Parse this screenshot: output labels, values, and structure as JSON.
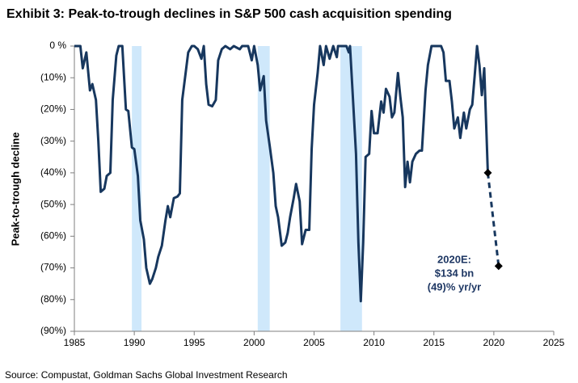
{
  "chart_data": {
    "type": "line",
    "title": "Exhibit 3: Peak-to-trough declines in S&P 500 cash acquisition spending",
    "ylabel": "Peak-to-trough  decline",
    "source": "Source: Compustat, Goldman Sachs Global Investment Research",
    "annotation": [
      "2020E:",
      "$134 bn",
      "(49)% yr/yr"
    ],
    "xlim": [
      1985,
      2025
    ],
    "xticks": [
      1985,
      1990,
      1995,
      2000,
      2005,
      2010,
      2015,
      2020,
      2025
    ],
    "ylim": [
      -90,
      0
    ],
    "yticks": [
      {
        "value": 0,
        "label": "0 %"
      },
      {
        "value": -10,
        "label": "(10%)"
      },
      {
        "value": -20,
        "label": "(20%)"
      },
      {
        "value": -30,
        "label": "(30%)"
      },
      {
        "value": -40,
        "label": "(40%)"
      },
      {
        "value": -50,
        "label": "(50%)"
      },
      {
        "value": -60,
        "label": "(60%)"
      },
      {
        "value": -70,
        "label": "(70%)"
      },
      {
        "value": -80,
        "label": "(80%)"
      },
      {
        "value": -90,
        "label": "(90%)"
      }
    ],
    "shaded_ranges": [
      [
        1989.8,
        1990.6
      ],
      [
        2000.3,
        2001.3
      ],
      [
        2007.2,
        2009.0
      ]
    ],
    "shade_color": "#cfe8fb",
    "series": [
      {
        "color": "#17375e",
        "x": [
          1985.0,
          1985.5,
          1985.7,
          1986.0,
          1986.3,
          1986.5,
          1986.8,
          1987.0,
          1987.2,
          1987.5,
          1987.7,
          1988.0,
          1988.2,
          1988.5,
          1988.7,
          1989.0,
          1989.3,
          1989.5,
          1989.8,
          1990.0,
          1990.3,
          1990.5,
          1990.8,
          1991.0,
          1991.3,
          1991.5,
          1991.8,
          1992.0,
          1992.3,
          1992.6,
          1992.8,
          1993.0,
          1993.3,
          1993.6,
          1993.8,
          1994.0,
          1994.3,
          1994.5,
          1994.8,
          1995.0,
          1995.3,
          1995.6,
          1995.8,
          1996.0,
          1996.2,
          1996.5,
          1996.8,
          1997.0,
          1997.3,
          1997.6,
          1998.0,
          1998.3,
          1998.8,
          1999.0,
          1999.5,
          1999.8,
          2000.0,
          2000.3,
          2000.5,
          2000.8,
          2001.0,
          2001.3,
          2001.6,
          2001.8,
          2002.0,
          2002.3,
          2002.6,
          2002.8,
          2003.0,
          2003.3,
          2003.5,
          2003.8,
          2004.0,
          2004.3,
          2004.6,
          2004.8,
          2005.0,
          2005.3,
          2005.5,
          2005.8,
          2006.0,
          2006.3,
          2006.6,
          2006.9,
          2007.0,
          2007.5,
          2007.7,
          2007.9,
          2008.0,
          2008.2,
          2008.5,
          2008.7,
          2008.9,
          2009.1,
          2009.3,
          2009.6,
          2009.8,
          2010.0,
          2010.3,
          2010.6,
          2010.8,
          2011.0,
          2011.3,
          2011.5,
          2011.7,
          2012.0,
          2012.2,
          2012.4,
          2012.6,
          2012.8,
          2013.0,
          2013.2,
          2013.5,
          2013.8,
          2014.0,
          2014.3,
          2014.5,
          2014.8,
          2015.0,
          2015.3,
          2015.6,
          2015.8,
          2016.0,
          2016.3,
          2016.5,
          2016.7,
          2017.0,
          2017.2,
          2017.5,
          2017.7,
          2018.0,
          2018.2,
          2018.4,
          2018.6,
          2018.8,
          2019.0,
          2019.2,
          2019.5
        ],
        "values": [
          0,
          0,
          -7,
          -2,
          -14,
          -12,
          -17,
          -30,
          -46,
          -45,
          -41,
          -40,
          -17,
          -3,
          0,
          0,
          -20,
          -20.5,
          -32,
          -32.5,
          -41,
          -55,
          -61,
          -70,
          -75,
          -73.5,
          -70,
          -66.5,
          -63,
          -55,
          -50.5,
          -54,
          -48,
          -47.5,
          -46.5,
          -17,
          -8,
          -2,
          0,
          0,
          -1,
          -4,
          0,
          -12,
          -18.5,
          -19,
          -17,
          -4.5,
          -1,
          0,
          -1,
          0,
          -1,
          0,
          0,
          -4.5,
          0,
          -6,
          -14,
          -9.5,
          -23.5,
          -31.5,
          -40,
          -50.5,
          -54,
          -63,
          -62,
          -59,
          -54,
          -48,
          -43.5,
          -49,
          -62.5,
          -58,
          -58,
          -32.5,
          -18.5,
          -8.5,
          0,
          -6,
          0,
          -4,
          0,
          -3.5,
          0,
          0,
          0,
          -2,
          0,
          -13.5,
          -34,
          -62,
          -80.5,
          -62,
          -35,
          -34,
          -20.5,
          -27.5,
          -27.5,
          -17.5,
          -21,
          -13.5,
          -16,
          -22.5,
          -21,
          -8.5,
          -16,
          -22.5,
          -44.5,
          -36.5,
          -43,
          -36.5,
          -34,
          -33,
          -33,
          -14,
          -6,
          0,
          0,
          0,
          0,
          -2,
          -11,
          -11,
          -17.5,
          -26,
          -22.5,
          -29,
          -21,
          -26,
          -20,
          -18.5,
          -9.5,
          0,
          -6,
          -15.5,
          -7,
          -40
        ]
      },
      {
        "color": "#17375e",
        "dashed": true,
        "marker": "diamond",
        "marker_color": "#000000",
        "x": [
          2019.5,
          2020.4
        ],
        "values": [
          -40,
          -69.4
        ]
      }
    ]
  }
}
